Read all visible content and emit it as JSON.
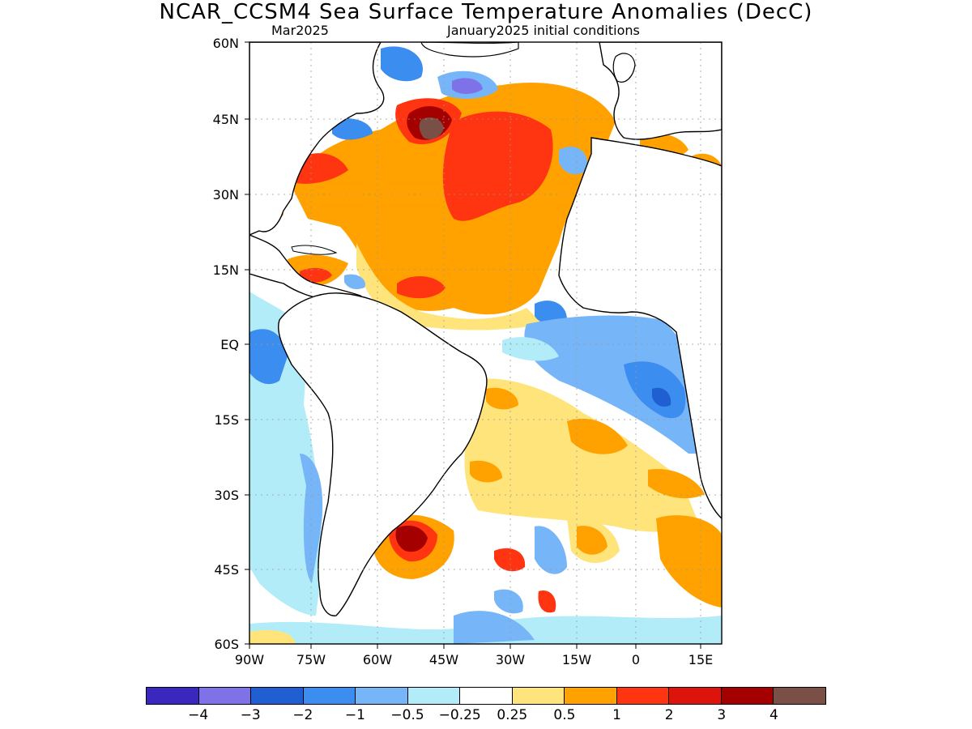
{
  "title": "NCAR_CCSM4 Sea Surface Temperature Anomalies (DecC)",
  "subtitle_left": "Mar2025",
  "subtitle_right": "January2025 initial conditions",
  "lat_ticks": [
    "60N",
    "45N",
    "30N",
    "15N",
    "EQ",
    "15S",
    "30S",
    "45S",
    "60S"
  ],
  "lon_ticks": [
    "90W",
    "75W",
    "60W",
    "45W",
    "30W",
    "15W",
    "0",
    "15E"
  ],
  "colorbar": {
    "colors": [
      "#3a27c0",
      "#7f72e8",
      "#1f5fd2",
      "#3c8df0",
      "#76b5f7",
      "#b2ecf8",
      "#ffffff",
      "#ffe47c",
      "#ffa200",
      "#ff3512",
      "#dc140c",
      "#a50000",
      "#7a4f46"
    ],
    "labels": [
      "-4",
      "-3",
      "-2",
      "-1",
      "-0.5",
      "-0.25",
      "0.25",
      "0.5",
      "1",
      "2",
      "3",
      "4"
    ]
  },
  "regions": [
    {
      "name": "north-atlantic-warm",
      "category": "0.5 to 1",
      "color": "#ffa200"
    },
    {
      "name": "southwest-atlantic-hotspot",
      "category": "3 to 4",
      "color": "#a50000"
    },
    {
      "name": "north-atlantic-hotspot",
      "category": "above 4",
      "color": "#7a4f46"
    },
    {
      "name": "gulf-of-guinea-cool",
      "category": "-1 to -0.5",
      "color": "#76b5f7"
    },
    {
      "name": "angola-coast-cool",
      "category": "-2 to -1",
      "color": "#3c8df0"
    },
    {
      "name": "pacific-coast-cool",
      "category": "-0.5 to -0.25",
      "color": "#b2ecf8"
    }
  ]
}
